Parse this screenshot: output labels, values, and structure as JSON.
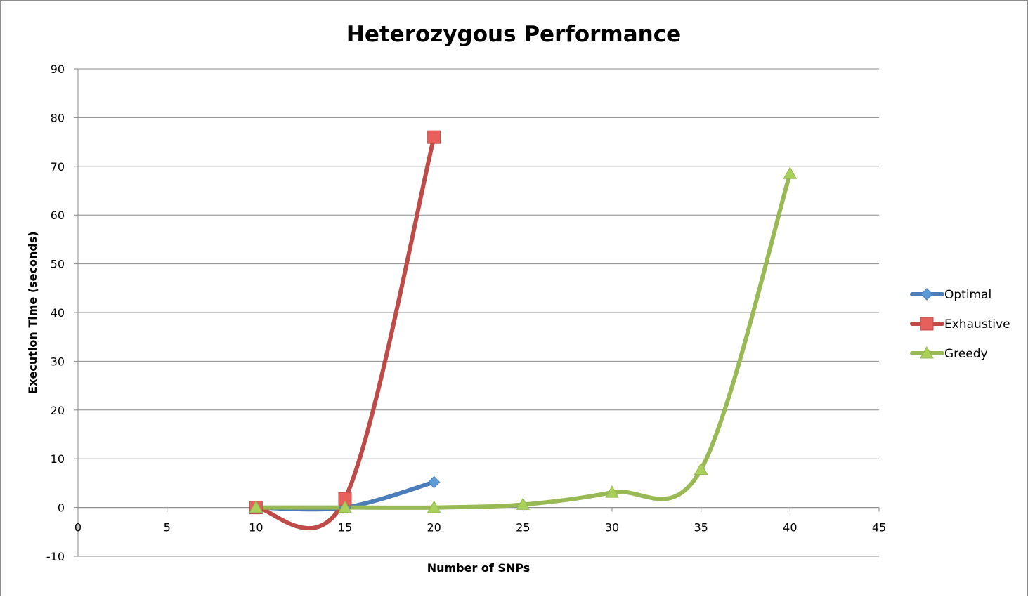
{
  "chart_data": {
    "type": "scatter",
    "title": "Heterozygous Performance",
    "xlabel": "Number of SNPs",
    "ylabel": "Execution Time (seconds)",
    "xlim": [
      0,
      45
    ],
    "ylim": [
      -10,
      90
    ],
    "x_ticks": [
      "0",
      "5",
      "10",
      "15",
      "20",
      "25",
      "30",
      "35",
      "40",
      "45"
    ],
    "y_ticks": [
      "-10",
      "0",
      "10",
      "20",
      "30",
      "40",
      "50",
      "60",
      "70",
      "80",
      "90"
    ],
    "grid": "horizontal",
    "smoothed_lines": true,
    "legend_position": "right",
    "series": [
      {
        "name": "Optimal",
        "color": "#4a7ebb",
        "marker": "diamond",
        "marker_color": "#5b9bd5",
        "x": [
          10,
          15,
          20
        ],
        "y": [
          0,
          0,
          5.2
        ]
      },
      {
        "name": "Exhaustive",
        "color": "#be4b48",
        "marker": "square",
        "marker_color": "#e8605c",
        "x": [
          10,
          15,
          20
        ],
        "y": [
          0,
          1.8,
          76
        ]
      },
      {
        "name": "Greedy",
        "color": "#98b954",
        "marker": "triangle",
        "marker_color": "#a9d15a",
        "x": [
          10,
          15,
          20,
          25,
          30,
          35,
          40
        ],
        "y": [
          0,
          0,
          0,
          0.6,
          3.1,
          7.8,
          68.5
        ]
      }
    ]
  }
}
